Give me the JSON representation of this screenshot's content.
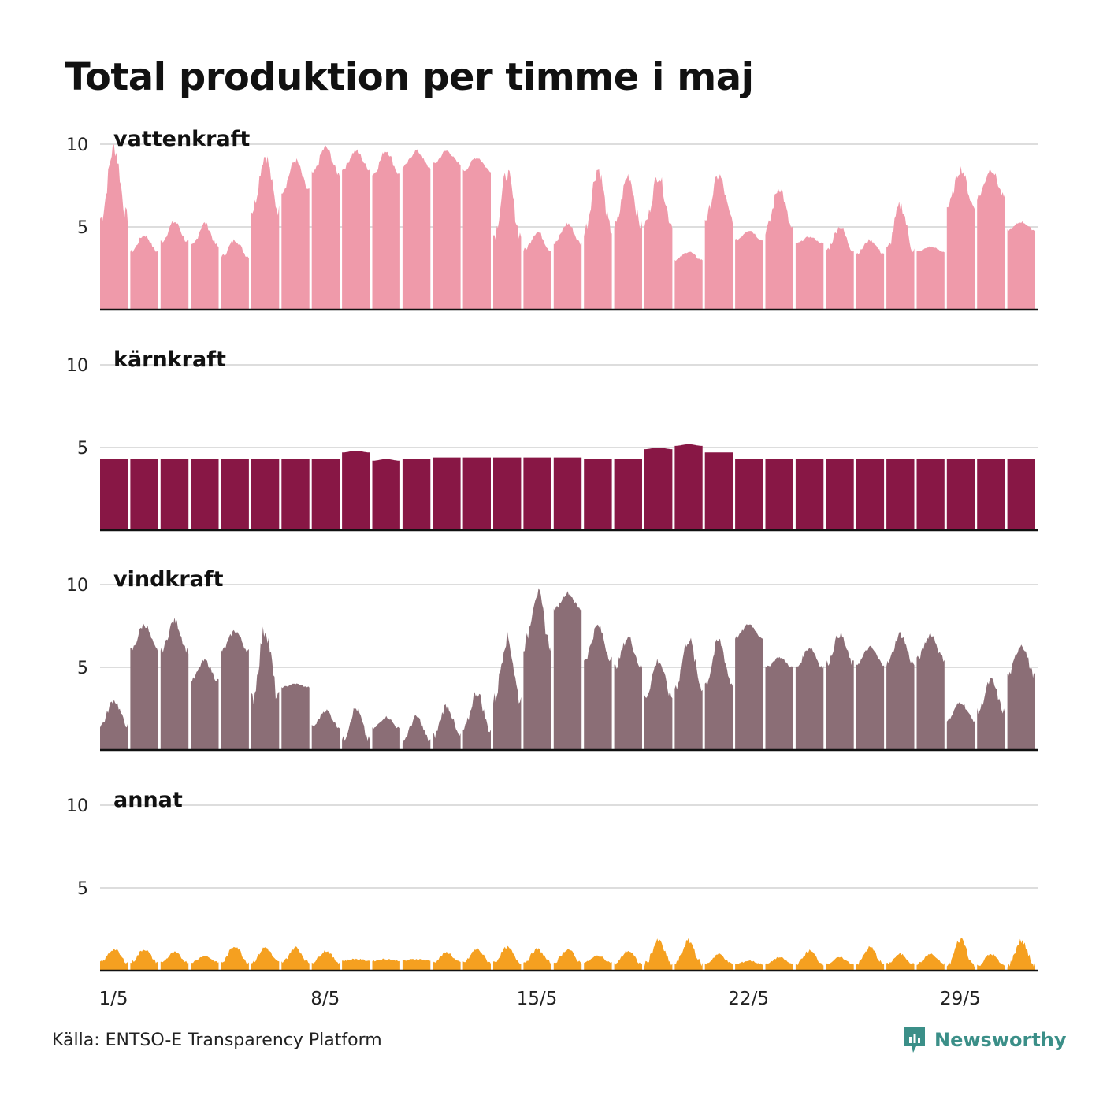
{
  "title": "Total produktion per timme i maj",
  "source": "Källa: ENTSO-E Transparency Platform",
  "brand": {
    "name": "Newsworthy",
    "icon": "newsworthy-logo-icon",
    "color": "#3b8f88"
  },
  "chart_data": {
    "type": "area",
    "layout": "small-multiples",
    "days": 31,
    "x_ticks": [
      "1/5",
      "8/5",
      "15/5",
      "22/5",
      "29/5"
    ],
    "x_tick_days": [
      1,
      8,
      15,
      22,
      29
    ],
    "ylim": [
      0,
      10
    ],
    "y_ticks": [
      5,
      10
    ],
    "grid": true,
    "panels": [
      {
        "name": "vattenkraft",
        "color": "#ef9aaa",
        "daily_base": [
          5.5,
          3.5,
          4.1,
          3.8,
          3.2,
          6.0,
          7.2,
          8.2,
          8.5,
          8.2,
          8.6,
          8.8,
          8.4,
          4.5,
          3.6,
          4.0,
          4.8,
          5.0,
          5.2,
          3.0,
          5.5,
          4.2,
          4.8,
          4.0,
          3.6,
          3.4,
          3.6,
          3.5,
          6.2,
          6.8,
          4.8
        ],
        "daily_peak": [
          9.8,
          4.5,
          5.3,
          5.2,
          4.2,
          9.3,
          9.0,
          9.8,
          9.6,
          9.6,
          9.6,
          9.6,
          9.2,
          8.2,
          4.7,
          5.2,
          8.5,
          8.1,
          8.1,
          3.5,
          8.1,
          4.8,
          7.4,
          4.4,
          5.0,
          4.2,
          6.3,
          3.8,
          8.5,
          8.5,
          5.3
        ]
      },
      {
        "name": "kärnkraft",
        "color": "#881745",
        "daily_base": [
          4.3,
          4.3,
          4.3,
          4.3,
          4.3,
          4.3,
          4.3,
          4.3,
          4.7,
          4.2,
          4.3,
          4.4,
          4.4,
          4.4,
          4.4,
          4.4,
          4.3,
          4.3,
          4.9,
          5.1,
          4.7,
          4.3,
          4.3,
          4.3,
          4.3,
          4.3,
          4.3,
          4.3,
          4.3,
          4.3,
          4.3
        ],
        "daily_peak": [
          4.3,
          4.3,
          4.3,
          4.3,
          4.3,
          4.3,
          4.3,
          4.3,
          4.8,
          4.3,
          4.3,
          4.4,
          4.4,
          4.4,
          4.4,
          4.4,
          4.3,
          4.3,
          5.0,
          5.2,
          4.7,
          4.3,
          4.3,
          4.3,
          4.3,
          4.3,
          4.3,
          4.3,
          4.3,
          4.3,
          4.3
        ]
      },
      {
        "name": "vindkraft",
        "color": "#8b6e76",
        "daily_base": [
          1.5,
          6.0,
          6.0,
          4.2,
          6.0,
          3.0,
          3.8,
          1.4,
          0.6,
          1.3,
          0.6,
          0.8,
          1.2,
          3.0,
          6.3,
          8.5,
          5.5,
          5.0,
          3.2,
          3.8,
          4.0,
          6.8,
          5.0,
          5.0,
          5.2,
          5.2,
          5.2,
          5.5,
          1.8,
          2.3,
          4.5
        ],
        "daily_peak": [
          3.0,
          7.6,
          7.8,
          5.4,
          7.2,
          7.3,
          4.0,
          2.4,
          2.5,
          2.0,
          2.0,
          2.7,
          3.5,
          6.8,
          9.5,
          9.5,
          7.5,
          6.8,
          5.4,
          6.7,
          6.6,
          7.6,
          5.6,
          6.2,
          7.0,
          6.2,
          7.0,
          7.0,
          2.9,
          4.2,
          6.4
        ]
      },
      {
        "name": "annat",
        "color": "#f5a020",
        "daily_base": [
          0.5,
          0.5,
          0.5,
          0.5,
          0.5,
          0.5,
          0.5,
          0.5,
          0.6,
          0.6,
          0.6,
          0.5,
          0.5,
          0.5,
          0.5,
          0.5,
          0.5,
          0.4,
          0.4,
          0.4,
          0.4,
          0.4,
          0.4,
          0.4,
          0.4,
          0.4,
          0.4,
          0.4,
          0.3,
          0.3,
          0.3
        ],
        "daily_peak": [
          1.3,
          1.3,
          1.1,
          0.9,
          1.5,
          1.4,
          1.4,
          1.2,
          0.7,
          0.7,
          0.7,
          1.1,
          1.3,
          1.4,
          1.3,
          1.3,
          0.9,
          1.2,
          1.8,
          1.8,
          1.0,
          0.6,
          0.8,
          1.2,
          0.8,
          1.4,
          1.0,
          1.0,
          1.9,
          1.0,
          1.8
        ]
      }
    ]
  }
}
